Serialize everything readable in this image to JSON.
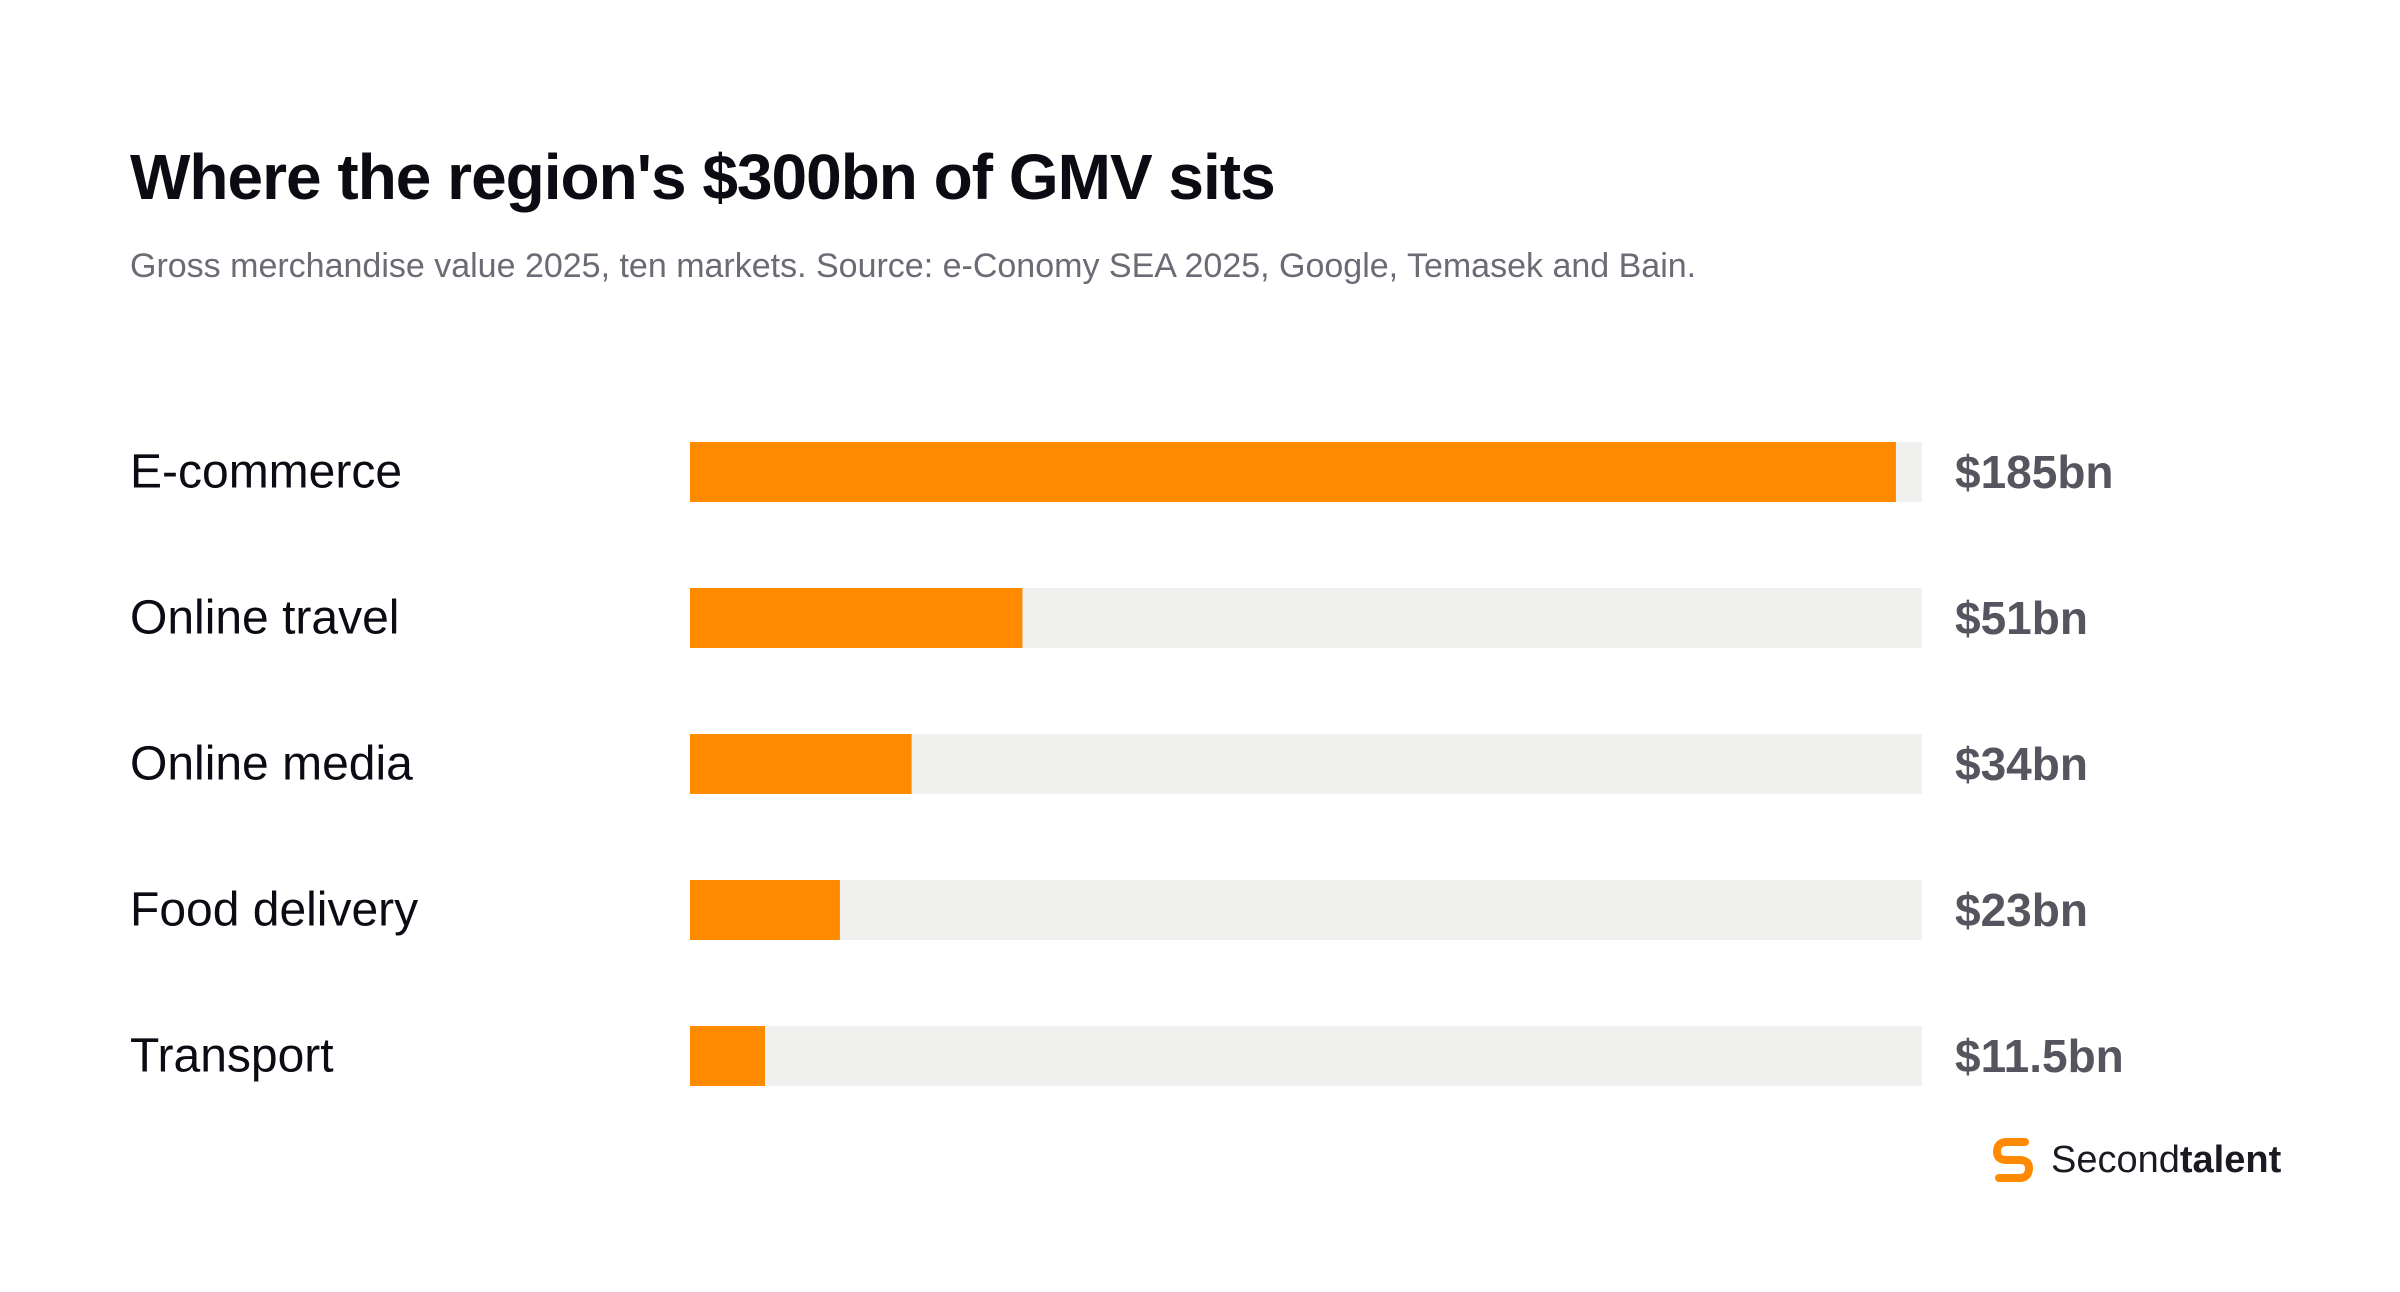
{
  "title": "Where the region's $300bn of GMV sits",
  "subtitle": "Gross merchandise value 2025, ten markets. Source: e-Conomy SEA 2025, Google, Temasek and Bain.",
  "colors": {
    "bar": "#ff8a00",
    "track": "#f0f0ef",
    "value_text": "#55555f"
  },
  "brand": {
    "name_regular": "Second",
    "name_bold": "talent",
    "icon": "secondtalent-logo-icon"
  },
  "chart_data": {
    "type": "bar",
    "orientation": "horizontal",
    "categories": [
      "E-commerce",
      "Online travel",
      "Online media",
      "Food delivery",
      "Transport"
    ],
    "values": [
      185,
      51,
      34,
      23,
      11.5
    ],
    "value_labels": [
      "$185bn",
      "$51bn",
      "$34bn",
      "$23bn",
      "$11.5bn"
    ],
    "unit": "bn",
    "xlim": [
      0,
      189
    ],
    "grid": false,
    "legend": "none"
  }
}
